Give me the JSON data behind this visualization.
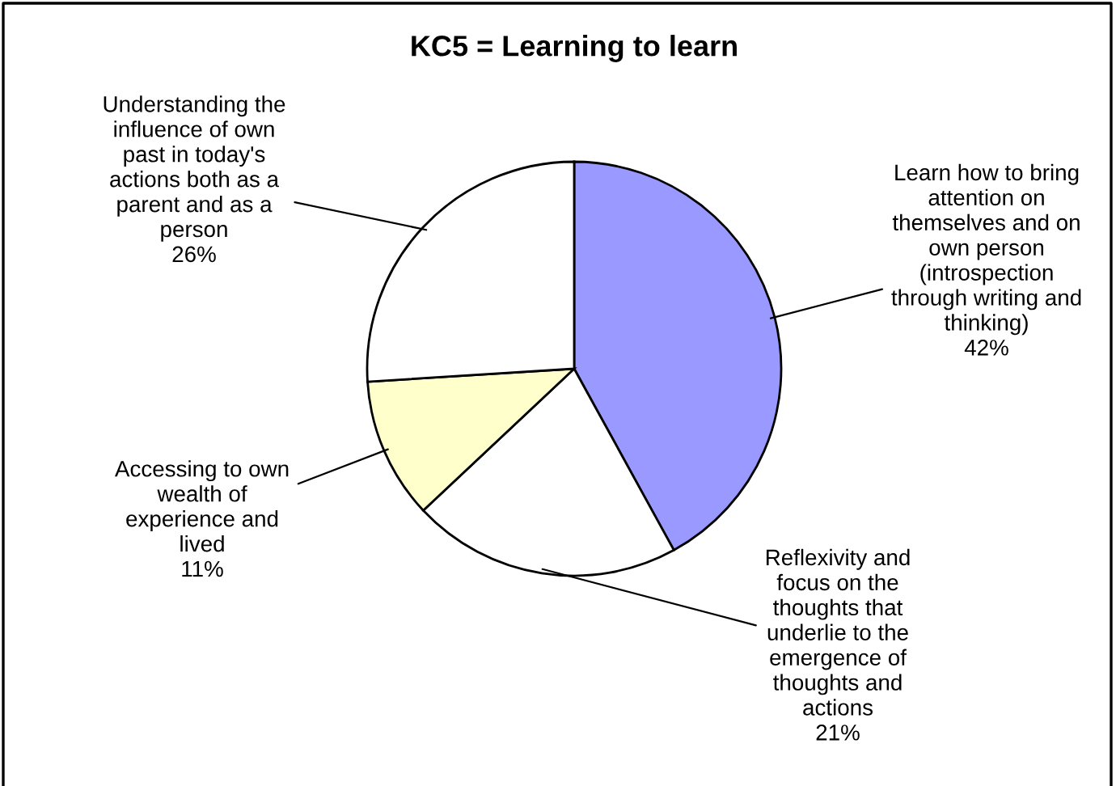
{
  "chart_data": {
    "type": "pie",
    "title": "KC5 = Learning to learn",
    "categories": [
      "Learn how to bring\nattention on\nthemselves and on\nown person\n(introspection\nthrough writing and\nthinking)",
      "Reflexivity and\nfocus on the\nthoughts that\nunderlie to the\nemergence of\nthoughts and\nactions",
      "Accessing to own\nwealth of\nexperience and\nlived",
      "Understanding the\ninfluence of own\npast in today's\nactions both as a\nparent and as a\nperson"
    ],
    "values": [
      42,
      21,
      11,
      26
    ],
    "value_labels": [
      "42%",
      "21%",
      "11%",
      "26%"
    ],
    "colors": [
      "#9999ff",
      "#ffffff",
      "#ffffcc",
      "#ffffff"
    ],
    "legend": false
  }
}
